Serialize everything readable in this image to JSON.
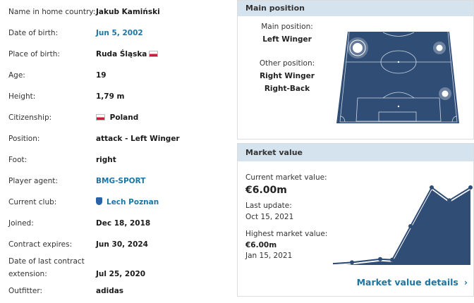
{
  "details": [
    {
      "label": "Name in home country:",
      "value": "Jakub Kamiński"
    },
    {
      "label": "Date of birth:",
      "value": "Jun 5, 2002",
      "link": true
    },
    {
      "label": "Place of birth:",
      "value": "Ruda Śląska",
      "flag": "poland-flag-icon"
    },
    {
      "label": "Age:",
      "value": "19"
    },
    {
      "label": "Height:",
      "value": "1,79 m"
    },
    {
      "label": "Citizenship:",
      "value": "Poland",
      "flag_before": "poland-flag-icon"
    },
    {
      "label": "Position:",
      "value": "attack - Left Winger"
    },
    {
      "label": "Foot:",
      "value": "right"
    },
    {
      "label": "Player agent:",
      "value": "BMG-SPORT",
      "link": true
    },
    {
      "label": "Current club:",
      "value": "Lech Poznan",
      "link": true,
      "crest": "club-crest-icon"
    },
    {
      "label": "Joined:",
      "value": "Dec 18, 2018"
    },
    {
      "label": "Contract expires:",
      "value": "Jun 30, 2024"
    }
  ],
  "last_extension": {
    "label_line1": "Date of last contract",
    "label_line2": "extension:",
    "value": "Jul 25, 2020"
  },
  "outfitter": {
    "label": "Outfitter:",
    "value": "adidas"
  },
  "main_position": {
    "header": "Main position",
    "main_label": "Main position:",
    "main_value": "Left Winger",
    "other_label": "Other position:",
    "other_values": [
      "Right Winger",
      "Right-Back"
    ]
  },
  "market_value": {
    "header": "Market value",
    "current_label": "Current market value:",
    "current_value": "€6.00m",
    "last_update_label": "Last update:",
    "last_update_value": "Oct 15, 2021",
    "highest_label": "Highest market value:",
    "highest_value": "€6.00m",
    "highest_date": "Jan 15, 2021",
    "details_link": "Market value details"
  },
  "chart_data": {
    "type": "area",
    "unit": "€m",
    "values": [
      0.1,
      0.2,
      0.45,
      0.4,
      3.0,
      6.0,
      5.0,
      6.0
    ],
    "markers": [
      false,
      true,
      true,
      true,
      true,
      true,
      true,
      true
    ],
    "ylim": [
      0,
      6
    ],
    "fill": "#2f4d75",
    "line": "#fff"
  },
  "colors": {
    "accent": "#1d75a3",
    "header_bg": "#d5e3ee",
    "pitch": "#2f4d75"
  }
}
